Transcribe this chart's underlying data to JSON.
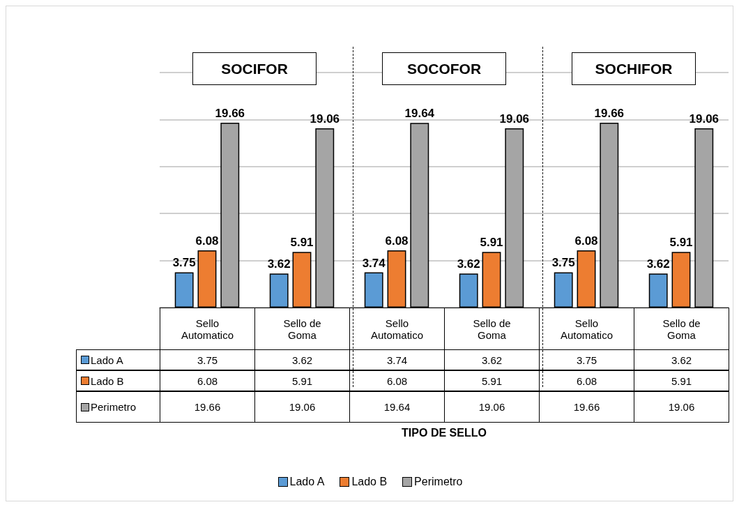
{
  "chart_data": [
    {
      "type": "bar",
      "xlabel": "TIPO DE SELLO",
      "annotations": [
        "SOCIFOR",
        "SOCOFOR",
        "SOCHIFOR"
      ],
      "categories": [
        "Sello Automatico",
        "Sello de Goma",
        "Sello Automatico",
        "Sello de Goma",
        "Sello Automatico",
        "Sello de Goma"
      ],
      "series": [
        {
          "name": "Lado A",
          "color": "#5b9bd5",
          "values": [
            3.75,
            3.62,
            3.74,
            3.62,
            3.75,
            3.62
          ],
          "value_labels": [
            "3.75",
            "3.62",
            "3.74",
            "3.62",
            "3.75",
            "3.62"
          ]
        },
        {
          "name": "Lado B",
          "color": "#ed7d31",
          "values": [
            6.08,
            5.91,
            6.08,
            5.91,
            6.08,
            5.91
          ],
          "value_labels": [
            "6.08",
            "5.91",
            "6.08",
            "5.91",
            "6.08",
            "5.91"
          ]
        },
        {
          "name": "Perimetro",
          "color": "#a5a5a5",
          "values": [
            19.66,
            19.06,
            19.64,
            19.06,
            19.66,
            19.06
          ],
          "value_labels": [
            "19.66",
            "19.06",
            "19.64",
            "19.06",
            "19.66",
            "19.06"
          ]
        }
      ],
      "ylim": [
        0,
        25
      ],
      "yticks": [
        {
          "value": 0,
          "label": null
        },
        {
          "value": 5,
          "label": null
        },
        {
          "value": 10,
          "label": null
        },
        {
          "value": 15,
          "label": null
        },
        {
          "value": 20,
          "label": null
        },
        {
          "value": 25,
          "label": null
        }
      ],
      "grid": "y",
      "legend": "bottom"
    },
    {
      "type": "other",
      "annotations": [
        "3.75",
        "3.62",
        "3.74",
        "3.62",
        "3.75",
        "3.62",
        "6.08",
        "5.91",
        "6.08",
        "5.91",
        "6.08",
        "5.91",
        "19.66",
        "19.06",
        "19.64",
        "19.06",
        "19.66",
        "19.06"
      ]
    }
  ]
}
